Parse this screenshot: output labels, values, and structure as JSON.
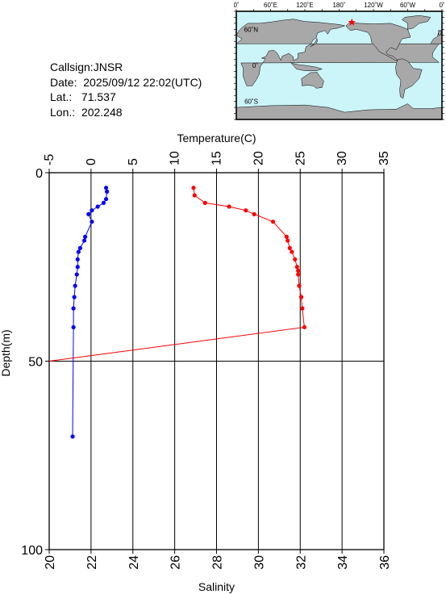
{
  "info": {
    "callsign_label": "Callsign:",
    "callsign": "JNSR",
    "date_label": "Date:",
    "date": "2025/09/12 22:02(UTC)",
    "lat_label": "Lat.:",
    "lat": "71.537",
    "lon_label": "Lon.:",
    "lon": "202.248"
  },
  "map": {
    "top_labels": [
      "0˚",
      "60˚E",
      "120˚E",
      "180˚",
      "120˚W",
      "60˚W",
      "0˚"
    ],
    "left_labels": [
      "60˚N",
      "0˚",
      "60˚S"
    ],
    "ocean_color": "#ccf5fa",
    "land_color": "#a8a8a8",
    "marker_color": "#ff0000",
    "marker": {
      "lon": 202.248,
      "lat": 71.537
    }
  },
  "chart_data": {
    "type": "line",
    "title": "",
    "top_axis": {
      "label": "Temperature(C)",
      "range": [
        -5,
        35
      ],
      "ticks": [
        -5,
        0,
        5,
        10,
        15,
        20,
        25,
        30,
        35
      ]
    },
    "bottom_axis": {
      "label": "Salinity",
      "range": [
        20,
        36
      ],
      "ticks": [
        20,
        22,
        24,
        26,
        28,
        30,
        32,
        34,
        36
      ]
    },
    "left_axis": {
      "label": "Depth(m)",
      "range": [
        0,
        100
      ],
      "reversed": true,
      "ticks": [
        0,
        50,
        100
      ]
    },
    "grid": true,
    "series": [
      {
        "axis": "temperature",
        "color": "#0000ff",
        "points": [
          {
            "x": 1.8,
            "depth": 4
          },
          {
            "x": 1.9,
            "depth": 5
          },
          {
            "x": 1.8,
            "depth": 7
          },
          {
            "x": 1.5,
            "depth": 8
          },
          {
            "x": 0.8,
            "depth": 9
          },
          {
            "x": 0.1,
            "depth": 10
          },
          {
            "x": -0.3,
            "depth": 11
          },
          {
            "x": 0.1,
            "depth": 13
          },
          {
            "x": -0.7,
            "depth": 17
          },
          {
            "x": -0.8,
            "depth": 18
          },
          {
            "x": -1.3,
            "depth": 20
          },
          {
            "x": -1.5,
            "depth": 21
          },
          {
            "x": -1.6,
            "depth": 23
          },
          {
            "x": -1.6,
            "depth": 25
          },
          {
            "x": -1.7,
            "depth": 27
          },
          {
            "x": -1.9,
            "depth": 30
          },
          {
            "x": -2.0,
            "depth": 33
          },
          {
            "x": -2.1,
            "depth": 36
          },
          {
            "x": -2.1,
            "depth": 41
          },
          {
            "x": -2.2,
            "depth": 70
          }
        ]
      },
      {
        "axis": "salinity",
        "color": "#ff0000",
        "points": [
          {
            "x": 26.9,
            "depth": 4
          },
          {
            "x": 26.95,
            "depth": 6
          },
          {
            "x": 27.45,
            "depth": 8
          },
          {
            "x": 28.6,
            "depth": 9
          },
          {
            "x": 29.4,
            "depth": 10
          },
          {
            "x": 29.8,
            "depth": 11
          },
          {
            "x": 30.7,
            "depth": 13
          },
          {
            "x": 31.35,
            "depth": 17
          },
          {
            "x": 31.4,
            "depth": 18
          },
          {
            "x": 31.5,
            "depth": 20
          },
          {
            "x": 31.6,
            "depth": 21
          },
          {
            "x": 31.75,
            "depth": 23
          },
          {
            "x": 31.85,
            "depth": 25
          },
          {
            "x": 31.9,
            "depth": 26
          },
          {
            "x": 31.9,
            "depth": 27
          },
          {
            "x": 31.95,
            "depth": 30
          },
          {
            "x": 32.05,
            "depth": 33
          },
          {
            "x": 32.1,
            "depth": 36
          },
          {
            "x": 32.2,
            "depth": 41
          },
          {
            "x": 20.0,
            "depth": 50
          }
        ]
      }
    ]
  }
}
